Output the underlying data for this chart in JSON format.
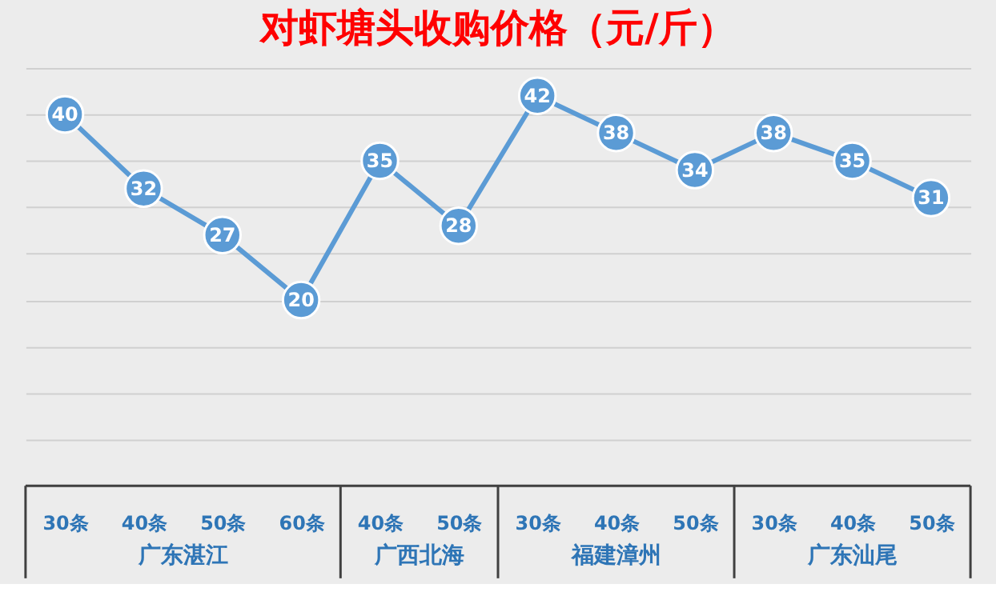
{
  "chart_data": {
    "type": "line",
    "title": "对虾塘头收购价格（元/斤）",
    "categories": [
      "30条",
      "40条",
      "50条",
      "60条",
      "40条",
      "50条",
      "30条",
      "40条",
      "50条",
      "30条",
      "40条",
      "50条"
    ],
    "series": [
      {
        "color": "#5b9bd5",
        "values": [
          40,
          32,
          27,
          20,
          35,
          28,
          42,
          38,
          34,
          38,
          35,
          31
        ]
      }
    ],
    "annotations": [
      "广东湛江",
      "广西北海",
      "福建漳州",
      "广东汕尾"
    ],
    "grid": "y",
    "tick_labels": "x",
    "data_labels": true,
    "marker": "circle",
    "line_style": "solid"
  }
}
